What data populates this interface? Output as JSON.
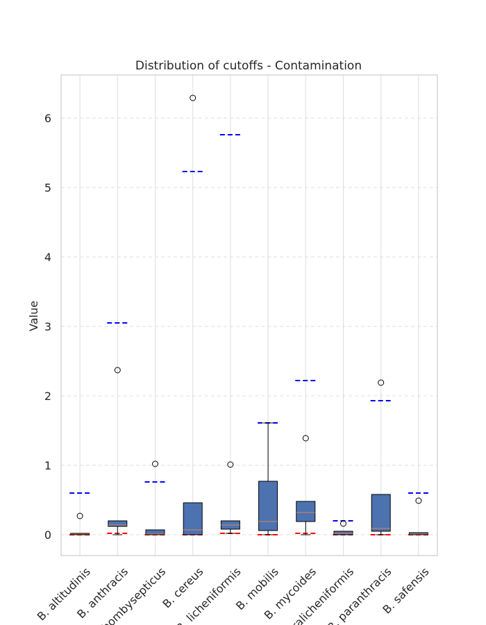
{
  "chart_data": {
    "type": "box",
    "title": "Distribution of cutoffs - Contamination",
    "xlabel": "",
    "ylabel": "Value",
    "ylim": [
      -0.3,
      6.62
    ],
    "yticks": [
      0,
      1,
      2,
      3,
      4,
      5,
      6
    ],
    "grid": true,
    "categories": [
      "B. altitudinis",
      "B. anthracis",
      "B. bombysepticus",
      "B. cereus",
      "B. licheniformis",
      "B. mobilis",
      "B. mycoides",
      "B. paralicheniformis",
      "B. paranthracis",
      "B. safensis"
    ],
    "boxes": [
      {
        "whislo": 0.0,
        "q1": 0.0,
        "med": 0.01,
        "q3": 0.02,
        "whishi": 0.02,
        "fliers": [
          0.27
        ]
      },
      {
        "whislo": 0.0,
        "q1": 0.12,
        "med": 0.14,
        "q3": 0.2,
        "whishi": 0.2,
        "fliers": [
          2.37
        ]
      },
      {
        "whislo": 0.0,
        "q1": 0.0,
        "med": 0.01,
        "q3": 0.07,
        "whishi": 0.07,
        "fliers": [
          1.02
        ]
      },
      {
        "whislo": 0.0,
        "q1": 0.0,
        "med": 0.07,
        "q3": 0.46,
        "whishi": 0.46,
        "fliers": [
          6.29
        ]
      },
      {
        "whislo": 0.02,
        "q1": 0.08,
        "med": 0.14,
        "q3": 0.2,
        "whishi": 0.2,
        "fliers": [
          1.01
        ]
      },
      {
        "whislo": 0.0,
        "q1": 0.06,
        "med": 0.19,
        "q3": 0.77,
        "whishi": 1.61,
        "fliers": []
      },
      {
        "whislo": 0.0,
        "q1": 0.19,
        "med": 0.32,
        "q3": 0.48,
        "whishi": 0.48,
        "fliers": [
          1.39
        ]
      },
      {
        "whislo": 0.0,
        "q1": 0.0,
        "med": 0.02,
        "q3": 0.05,
        "whishi": 0.05,
        "fliers": [
          0.16
        ]
      },
      {
        "whislo": 0.0,
        "q1": 0.05,
        "med": 0.09,
        "q3": 0.58,
        "whishi": 0.58,
        "fliers": [
          2.19
        ]
      },
      {
        "whislo": 0.0,
        "q1": 0.0,
        "med": 0.01,
        "q3": 0.03,
        "whishi": 0.03,
        "fliers": [
          0.49
        ]
      }
    ],
    "upper_cutoffs": [
      0.6,
      3.05,
      0.76,
      5.23,
      5.76,
      1.61,
      2.22,
      0.2,
      1.93,
      0.6
    ],
    "lower_cutoffs": [
      0.0,
      0.02,
      0.0,
      0.0,
      0.02,
      0.0,
      0.02,
      0.0,
      0.0,
      0.0
    ],
    "colors": {
      "box_fill": "#4c72b0",
      "box_edge": "#000000",
      "median": "#dd8452",
      "upper_cutoff": "#0000ff",
      "lower_cutoff": "#ff0000",
      "grid": "#dddddd",
      "frame": "#cccccc"
    }
  }
}
